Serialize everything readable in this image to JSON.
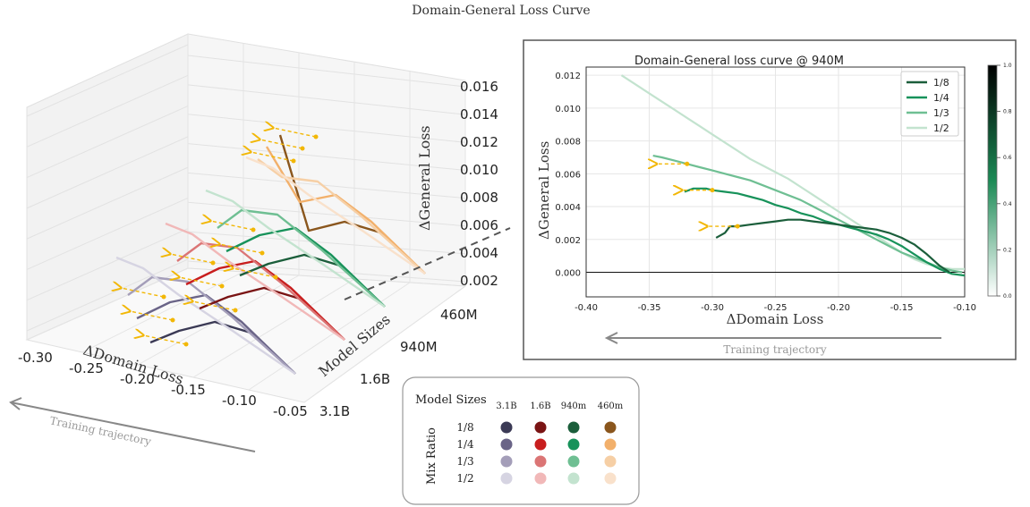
{
  "figure_title": "Domain-General Loss Curve",
  "chart_data": [
    {
      "type": "line",
      "projection": "3d",
      "title": "",
      "xlabel": "ΔDomain  Loss",
      "ylabel": "Model Sizes",
      "zlabel": "ΔGeneral Loss",
      "x_ticks": [
        "-0.30",
        "-0.25",
        "-0.20",
        "-0.15",
        "-0.10",
        "-0.05"
      ],
      "y_ticks": [
        "3.1B",
        "1.6B",
        "940M",
        "460M"
      ],
      "z_ticks": [
        "0.002",
        "0.004",
        "0.006",
        "0.008",
        "0.010",
        "0.012",
        "0.014",
        "0.016"
      ],
      "grid": true,
      "trajectory_label": "Training trajectory"
    },
    {
      "type": "line",
      "title": "Domain-General loss curve @ 940M",
      "xlabel": "ΔDomain  Loss",
      "ylabel": "ΔGeneral Loss",
      "xlim": [
        -0.4,
        -0.1
      ],
      "ylim": [
        -0.0015,
        0.0125
      ],
      "x_ticks": [
        "-0.40",
        "-0.35",
        "-0.30",
        "-0.25",
        "-0.20",
        "-0.15",
        "-0.10"
      ],
      "y_ticks": [
        "0.000",
        "0.002",
        "0.004",
        "0.006",
        "0.008",
        "0.010",
        "0.012"
      ],
      "grid": true,
      "legend_position": "top-right",
      "trajectory_label": "Training trajectory",
      "series": [
        {
          "name": "1/8",
          "color": "#1b5e3b",
          "x": [
            -0.297,
            -0.29,
            -0.286,
            -0.28,
            -0.27,
            -0.26,
            -0.25,
            -0.24,
            -0.23,
            -0.22,
            -0.21,
            -0.2,
            -0.19,
            -0.18,
            -0.17,
            -0.16,
            -0.15,
            -0.14,
            -0.13,
            -0.12,
            -0.112
          ],
          "y": [
            0.0021,
            0.0024,
            0.0028,
            0.0028,
            0.0029,
            0.003,
            0.0031,
            0.0032,
            0.0032,
            0.0031,
            0.003,
            0.0029,
            0.0028,
            0.0027,
            0.0026,
            0.0024,
            0.0021,
            0.0017,
            0.0011,
            0.0004,
            0.0
          ]
        },
        {
          "name": "1/4",
          "color": "#17925a",
          "x": [
            -0.322,
            -0.315,
            -0.305,
            -0.3,
            -0.29,
            -0.28,
            -0.27,
            -0.26,
            -0.25,
            -0.24,
            -0.23,
            -0.22,
            -0.21,
            -0.2,
            -0.19,
            -0.18,
            -0.17,
            -0.16,
            -0.15,
            -0.14,
            -0.13,
            -0.12,
            -0.11,
            -0.1
          ],
          "y": [
            0.0049,
            0.0051,
            0.0051,
            0.005,
            0.0049,
            0.0048,
            0.0046,
            0.0044,
            0.0041,
            0.0039,
            0.0036,
            0.0034,
            0.0031,
            0.0029,
            0.0027,
            0.0025,
            0.0023,
            0.002,
            0.0016,
            0.0011,
            0.0006,
            0.0002,
            -0.0001,
            -0.0002
          ]
        },
        {
          "name": "1/3",
          "color": "#6fbf93",
          "x": [
            -0.347,
            -0.34,
            -0.33,
            -0.32,
            -0.31,
            -0.3,
            -0.29,
            -0.28,
            -0.27,
            -0.26,
            -0.25,
            -0.24,
            -0.23,
            -0.22,
            -0.21,
            -0.2,
            -0.19,
            -0.18,
            -0.17,
            -0.16,
            -0.15,
            -0.14,
            -0.13,
            -0.12,
            -0.11,
            -0.102
          ],
          "y": [
            0.0071,
            0.007,
            0.0068,
            0.0066,
            0.0064,
            0.0062,
            0.006,
            0.0058,
            0.0056,
            0.0053,
            0.005,
            0.0047,
            0.0044,
            0.004,
            0.0036,
            0.0032,
            0.0028,
            0.0024,
            0.002,
            0.0016,
            0.0012,
            0.0009,
            0.0006,
            0.0003,
            0.0001,
            0.0
          ]
        },
        {
          "name": "1/2",
          "color": "#c3e3cf",
          "x": [
            -0.372,
            -0.36,
            -0.35,
            -0.34,
            -0.33,
            -0.32,
            -0.31,
            -0.3,
            -0.29,
            -0.28,
            -0.27,
            -0.26,
            -0.25,
            -0.24,
            -0.23,
            -0.22,
            -0.21,
            -0.2,
            -0.19,
            -0.18,
            -0.17,
            -0.16,
            -0.15,
            -0.14,
            -0.13,
            -0.12,
            -0.11,
            -0.1
          ],
          "y": [
            0.012,
            0.0114,
            0.0109,
            0.0104,
            0.0099,
            0.0094,
            0.0089,
            0.0084,
            0.0079,
            0.0074,
            0.0069,
            0.0065,
            0.0061,
            0.0057,
            0.0052,
            0.0047,
            0.0042,
            0.0037,
            0.0032,
            0.0027,
            0.0022,
            0.0017,
            0.0012,
            0.0008,
            0.0005,
            0.0003,
            0.0002,
            0.0002
          ]
        }
      ],
      "colorbar": {
        "ticks": [
          "0.0",
          "0.2",
          "0.4",
          "0.6",
          "0.8",
          "1.0"
        ],
        "from": "#ffffff",
        "to": "#000000",
        "mid": "#1b8a55"
      }
    },
    {
      "type": "table",
      "title": "Model Sizes",
      "row_header": "Mix Ratio",
      "columns": [
        "3.1B",
        "1.6B",
        "940m",
        "460m"
      ],
      "rows": [
        {
          "label": "1/8",
          "colors": [
            "#3b3a55",
            "#7a1414",
            "#1b5e3b",
            "#8a561d"
          ]
        },
        {
          "label": "1/4",
          "colors": [
            "#6a6487",
            "#c81e1e",
            "#17925a",
            "#f2b06b"
          ]
        },
        {
          "label": "1/3",
          "colors": [
            "#a49eb9",
            "#db7575",
            "#6fbf93",
            "#f6cfa5"
          ]
        },
        {
          "label": "1/2",
          "colors": [
            "#d6d4e2",
            "#f1b8b8",
            "#c3e3cf",
            "#f9e1cb"
          ]
        }
      ]
    }
  ]
}
